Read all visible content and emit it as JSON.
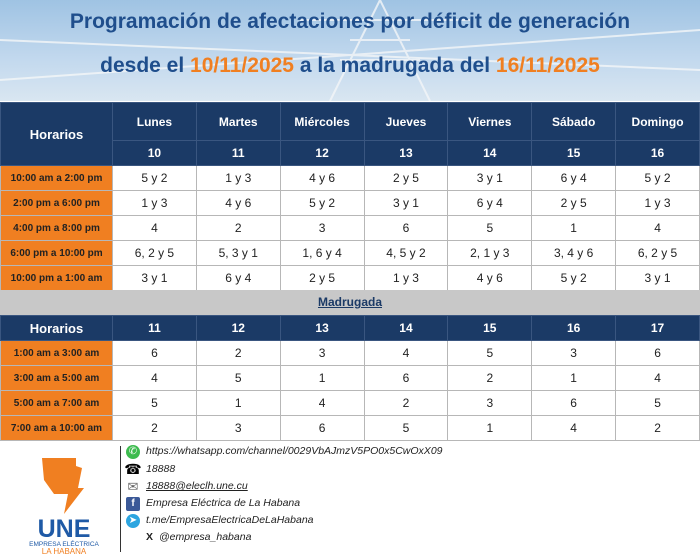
{
  "title": {
    "line1": "Programación de afectaciones por déficit de generación",
    "line2_pre": "desde el ",
    "date_from": "10/11/2025",
    "line2_mid": " a la madrugada del ",
    "date_to": "16/11/2025"
  },
  "day_table": {
    "horarios_label": "Horarios",
    "days": [
      "Lunes",
      "Martes",
      "Miércoles",
      "Jueves",
      "Viernes",
      "Sábado",
      "Domingo"
    ],
    "dates": [
      "10",
      "11",
      "12",
      "13",
      "14",
      "15",
      "16"
    ],
    "rows": [
      {
        "time": "10:00 am a 2:00 pm",
        "cells": [
          "5 y 2",
          "1 y 3",
          "4 y 6",
          "2 y 5",
          "3 y 1",
          "6 y 4",
          "5 y 2"
        ]
      },
      {
        "time": "2:00 pm a 6:00 pm",
        "cells": [
          "1 y 3",
          "4 y 6",
          "5 y 2",
          "3 y 1",
          "6 y 4",
          "2 y 5",
          "1 y 3"
        ]
      },
      {
        "time": "4:00 pm a 8:00 pm",
        "cells": [
          "4",
          "2",
          "3",
          "6",
          "5",
          "1",
          "4"
        ]
      },
      {
        "time": "6:00 pm a 10:00 pm",
        "cells": [
          "6, 2 y 5",
          "5, 3 y 1",
          "1, 6 y 4",
          "4, 5 y 2",
          "2, 1 y 3",
          "3, 4 y 6",
          "6, 2 y 5"
        ]
      },
      {
        "time": "10:00 pm a 1:00 am",
        "cells": [
          "3 y 1",
          "6 y 4",
          "2 y 5",
          "1 y 3",
          "4 y 6",
          "5 y 2",
          "3 y 1"
        ]
      }
    ]
  },
  "madrugada": {
    "label": "Madrugada",
    "horarios_label": "Horarios",
    "dates": [
      "11",
      "12",
      "13",
      "14",
      "15",
      "16",
      "17"
    ],
    "rows": [
      {
        "time": "1:00 am a 3:00 am",
        "cells": [
          "6",
          "2",
          "3",
          "4",
          "5",
          "3",
          "6"
        ]
      },
      {
        "time": "3:00 am a 5:00 am",
        "cells": [
          "4",
          "5",
          "1",
          "6",
          "2",
          "1",
          "4"
        ]
      },
      {
        "time": "5:00 am a 7:00 am",
        "cells": [
          "5",
          "1",
          "4",
          "2",
          "3",
          "6",
          "5"
        ]
      },
      {
        "time": "7:00 am a 10:00 am",
        "cells": [
          "2",
          "3",
          "6",
          "5",
          "1",
          "4",
          "2"
        ]
      }
    ]
  },
  "footer": {
    "logo": {
      "name": "UNE",
      "sub1": "EMPRESA ELÉCTRICA",
      "sub2": "LA HABANA"
    },
    "whatsapp": "https://whatsapp.com/channel/0029VbAJmzV5PO0x5CwOxX09",
    "phone": "18888",
    "email": "18888@eleclh.une.cu",
    "facebook": "Empresa Eléctrica de La Habana",
    "telegram": "t.me/EmpresaElectricaDeLaHabana",
    "x_icon": "X",
    "x": "@empresa_habana"
  }
}
